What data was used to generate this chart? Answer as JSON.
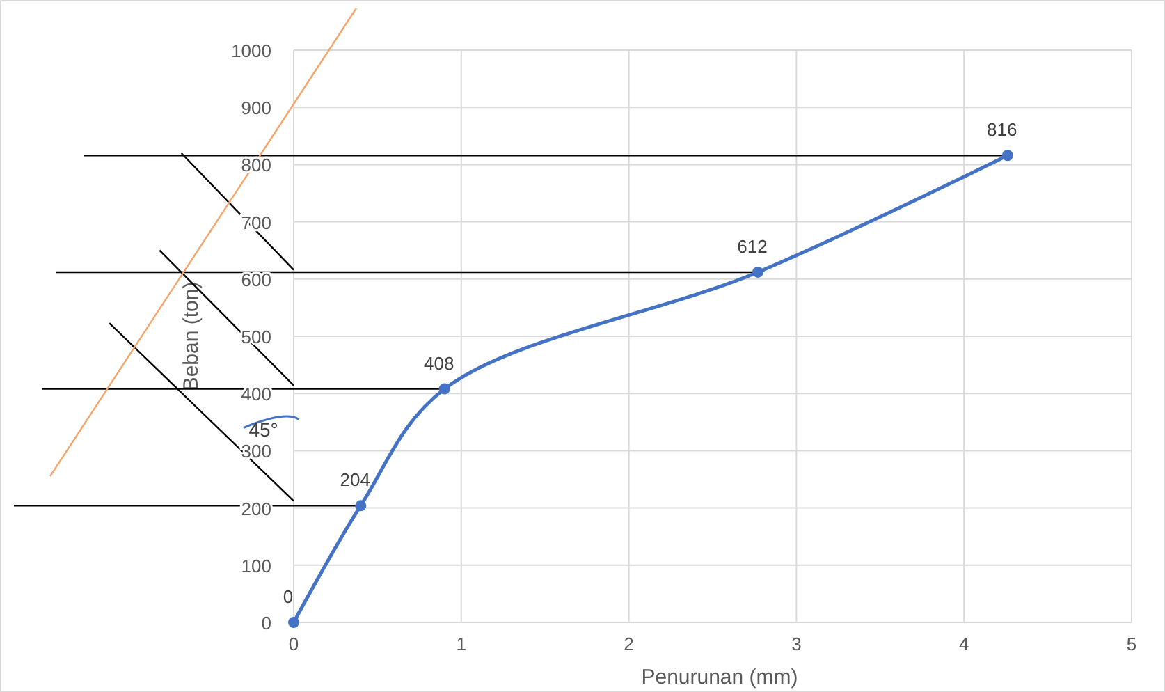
{
  "chart_data": {
    "type": "line",
    "xlabel": "Penurunan (mm)",
    "ylabel": "Beban (ton)",
    "x": [
      0,
      0.4,
      0.9,
      2.77,
      4.26
    ],
    "series": [
      {
        "color": "#4472c4",
        "values": [
          0,
          204,
          408,
          612,
          816
        ],
        "value_labels": [
          "0",
          "204",
          "408",
          "612",
          "816"
        ]
      },
      {
        "type": "line",
        "color": "#f4a46a",
        "x": [
          0,
          0.21
        ],
        "values": [
          906,
          1000
        ],
        "marker": "none"
      }
    ],
    "marker": "circle",
    "line_style": "solid",
    "grid": true,
    "xlim": [
      0,
      5
    ],
    "xticks": [
      0,
      1,
      2,
      3,
      4,
      5
    ],
    "ylim": [
      0,
      1000
    ],
    "yticks": [
      0,
      100,
      200,
      300,
      400,
      500,
      600,
      700,
      800,
      900,
      1000
    ],
    "ref_lines": [
      {
        "axis": "y",
        "value": 816,
        "color": "#000000"
      },
      {
        "axis": "y",
        "value": 612,
        "color": "#000000"
      },
      {
        "axis": "y",
        "value": 408,
        "color": "#000000"
      },
      {
        "axis": "y",
        "value": 204,
        "color": "#000000"
      }
    ],
    "annotations": [
      "45°"
    ]
  }
}
